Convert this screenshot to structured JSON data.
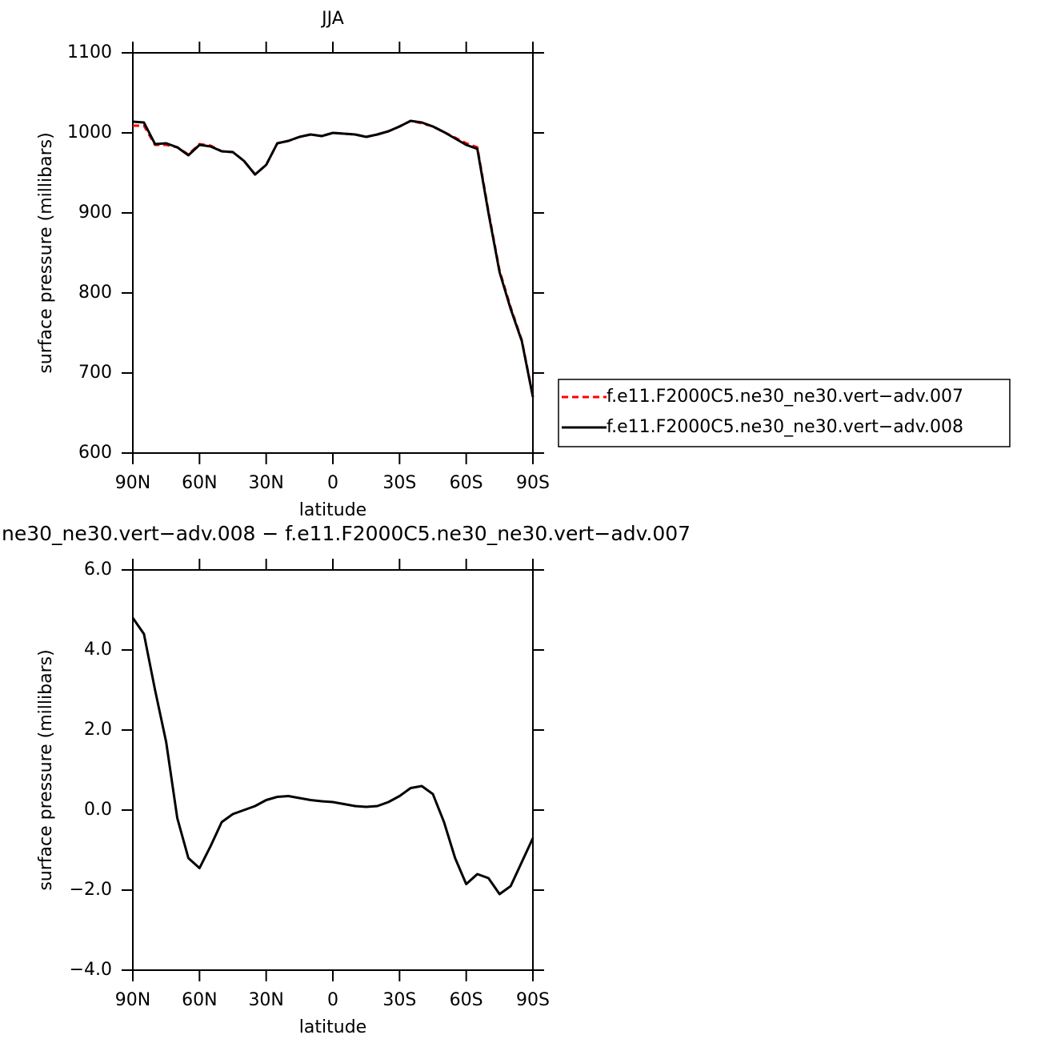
{
  "chart_data": [
    {
      "type": "line",
      "title": "JJA",
      "xlabel": "latitude",
      "ylabel": "surface pressure (millibars)",
      "x": [
        90,
        85,
        80,
        75,
        70,
        65,
        60,
        55,
        50,
        45,
        40,
        35,
        30,
        25,
        20,
        15,
        10,
        5,
        0,
        -5,
        -10,
        -15,
        -20,
        -25,
        -30,
        -35,
        -40,
        -45,
        -50,
        -55,
        -60,
        -65,
        -70,
        -75,
        -80,
        -85,
        -90
      ],
      "series": [
        {
          "name": "f.e11.F2000C5.ne30_ne30.vert−adv.007",
          "color": "#ff0000",
          "line_style": "dashed",
          "values": [
            1009,
            1009,
            985,
            985,
            982,
            973,
            986,
            984,
            977,
            976,
            965,
            948,
            960,
            987,
            990,
            995,
            998,
            996,
            1000,
            999,
            998,
            995,
            998,
            1002,
            1008,
            1015,
            1012,
            1008,
            1001,
            994,
            987,
            982,
            902,
            828,
            782,
            741,
            671
          ]
        },
        {
          "name": "f.e11.F2000C5.ne30_ne30.vert−adv.008",
          "color": "#000000",
          "line_style": "solid",
          "values": [
            1014,
            1013,
            986,
            987,
            982,
            972,
            985,
            983,
            977,
            976,
            965,
            948,
            960,
            987,
            990,
            995,
            998,
            996,
            1000,
            999,
            998,
            995,
            998,
            1002,
            1008,
            1015,
            1013,
            1008,
            1001,
            993,
            985,
            980,
            900,
            826,
            780,
            740,
            670
          ]
        }
      ],
      "xlim": [
        90,
        -90
      ],
      "xticks": [
        {
          "value": 90,
          "label": "90N"
        },
        {
          "value": 60,
          "label": "60N"
        },
        {
          "value": 30,
          "label": "30N"
        },
        0,
        {
          "value": -30,
          "label": "30S"
        },
        {
          "value": -60,
          "label": "60S"
        },
        {
          "value": -90,
          "label": "90S"
        }
      ],
      "ylim": [
        600,
        1100
      ],
      "yticks": [
        600,
        700,
        800,
        900,
        1000,
        1100
      ],
      "legend": "right"
    },
    {
      "type": "line",
      "title": "ne30_ne30.vert−adv.008 − f.e11.F2000C5.ne30_ne30.vert−adv.007",
      "xlabel": "latitude",
      "ylabel": "surface pressure (millibars)",
      "x": [
        90,
        85,
        80,
        75,
        70,
        65,
        60,
        55,
        50,
        45,
        40,
        35,
        30,
        25,
        20,
        15,
        10,
        5,
        0,
        -5,
        -10,
        -15,
        -20,
        -25,
        -30,
        -35,
        -40,
        -45,
        -50,
        -55,
        -60,
        -65,
        -70,
        -75,
        -80,
        -85,
        -90
      ],
      "color": "#000000",
      "values": [
        4.8,
        4.4,
        3.0,
        1.7,
        -0.2,
        -1.2,
        -1.45,
        -0.9,
        -0.3,
        -0.1,
        0.0,
        0.1,
        0.25,
        0.33,
        0.35,
        0.3,
        0.25,
        0.22,
        0.2,
        0.15,
        0.1,
        0.08,
        0.1,
        0.2,
        0.35,
        0.55,
        0.6,
        0.4,
        -0.3,
        -1.2,
        -1.85,
        -1.6,
        -1.7,
        -2.1,
        -1.9,
        -1.3,
        -0.7
      ],
      "xlim": [
        90,
        -90
      ],
      "xticks": [
        {
          "value": 90,
          "label": "90N"
        },
        {
          "value": 60,
          "label": "60N"
        },
        {
          "value": 30,
          "label": "30N"
        },
        0,
        {
          "value": -30,
          "label": "30S"
        },
        {
          "value": -60,
          "label": "60S"
        },
        {
          "value": -90,
          "label": "90S"
        }
      ],
      "ylim": [
        -4,
        6
      ],
      "yticks": [
        {
          "value": -4,
          "label": "−4.0"
        },
        {
          "value": -2,
          "label": "−2.0"
        },
        {
          "value": 0,
          "label": "0.0"
        },
        {
          "value": 2,
          "label": "2.0"
        },
        {
          "value": 4,
          "label": "4.0"
        },
        {
          "value": 6,
          "label": "6.0"
        }
      ]
    }
  ]
}
